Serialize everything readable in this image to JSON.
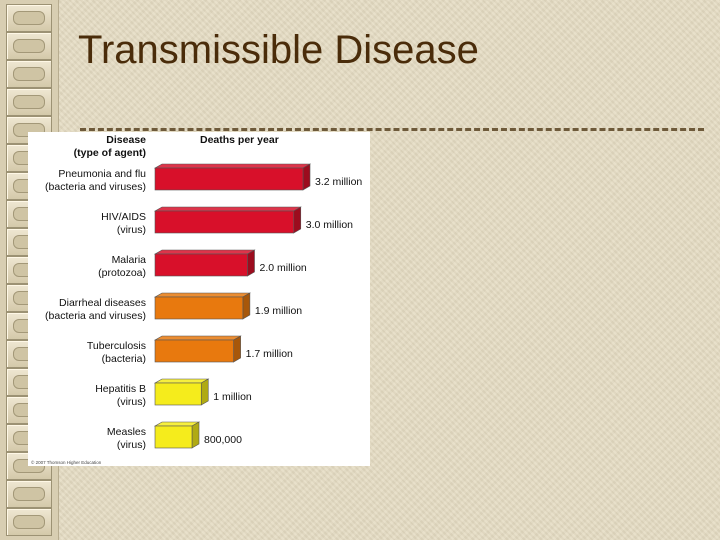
{
  "slide": {
    "title": "Transmissible Disease"
  },
  "chart_data": {
    "type": "bar",
    "orientation": "horizontal",
    "header_left_line1": "Disease",
    "header_left_line2": "(type of agent)",
    "header_right": "Deaths per year",
    "credit": "© 2007 Thomson Higher Education",
    "categories": [
      {
        "line1": "Pneumonia and flu",
        "line2": "(bacteria and viruses)"
      },
      {
        "line1": "HIV/AIDS",
        "line2": "(virus)"
      },
      {
        "line1": "Malaria",
        "line2": "(protozoa)"
      },
      {
        "line1": "Diarrheal diseases",
        "line2": "(bacteria and viruses)"
      },
      {
        "line1": "Tuberculosis",
        "line2": "(bacteria)"
      },
      {
        "line1": "Hepatitis B",
        "line2": "(virus)"
      },
      {
        "line1": "Measles",
        "line2": "(virus)"
      }
    ],
    "values": [
      3200000,
      3000000,
      2000000,
      1900000,
      1700000,
      1000000,
      800000
    ],
    "value_labels": [
      "3.2 million",
      "3.0 million",
      "2.0 million",
      "1.9 million",
      "1.7 million",
      "1 million",
      "800,000"
    ],
    "colors": [
      "#d8102a",
      "#d8102a",
      "#d8102a",
      "#e8790e",
      "#e8790e",
      "#f5ec1c",
      "#f5ec1c"
    ],
    "xlim": [
      0,
      3200000
    ],
    "grid": false,
    "legend": "none"
  }
}
